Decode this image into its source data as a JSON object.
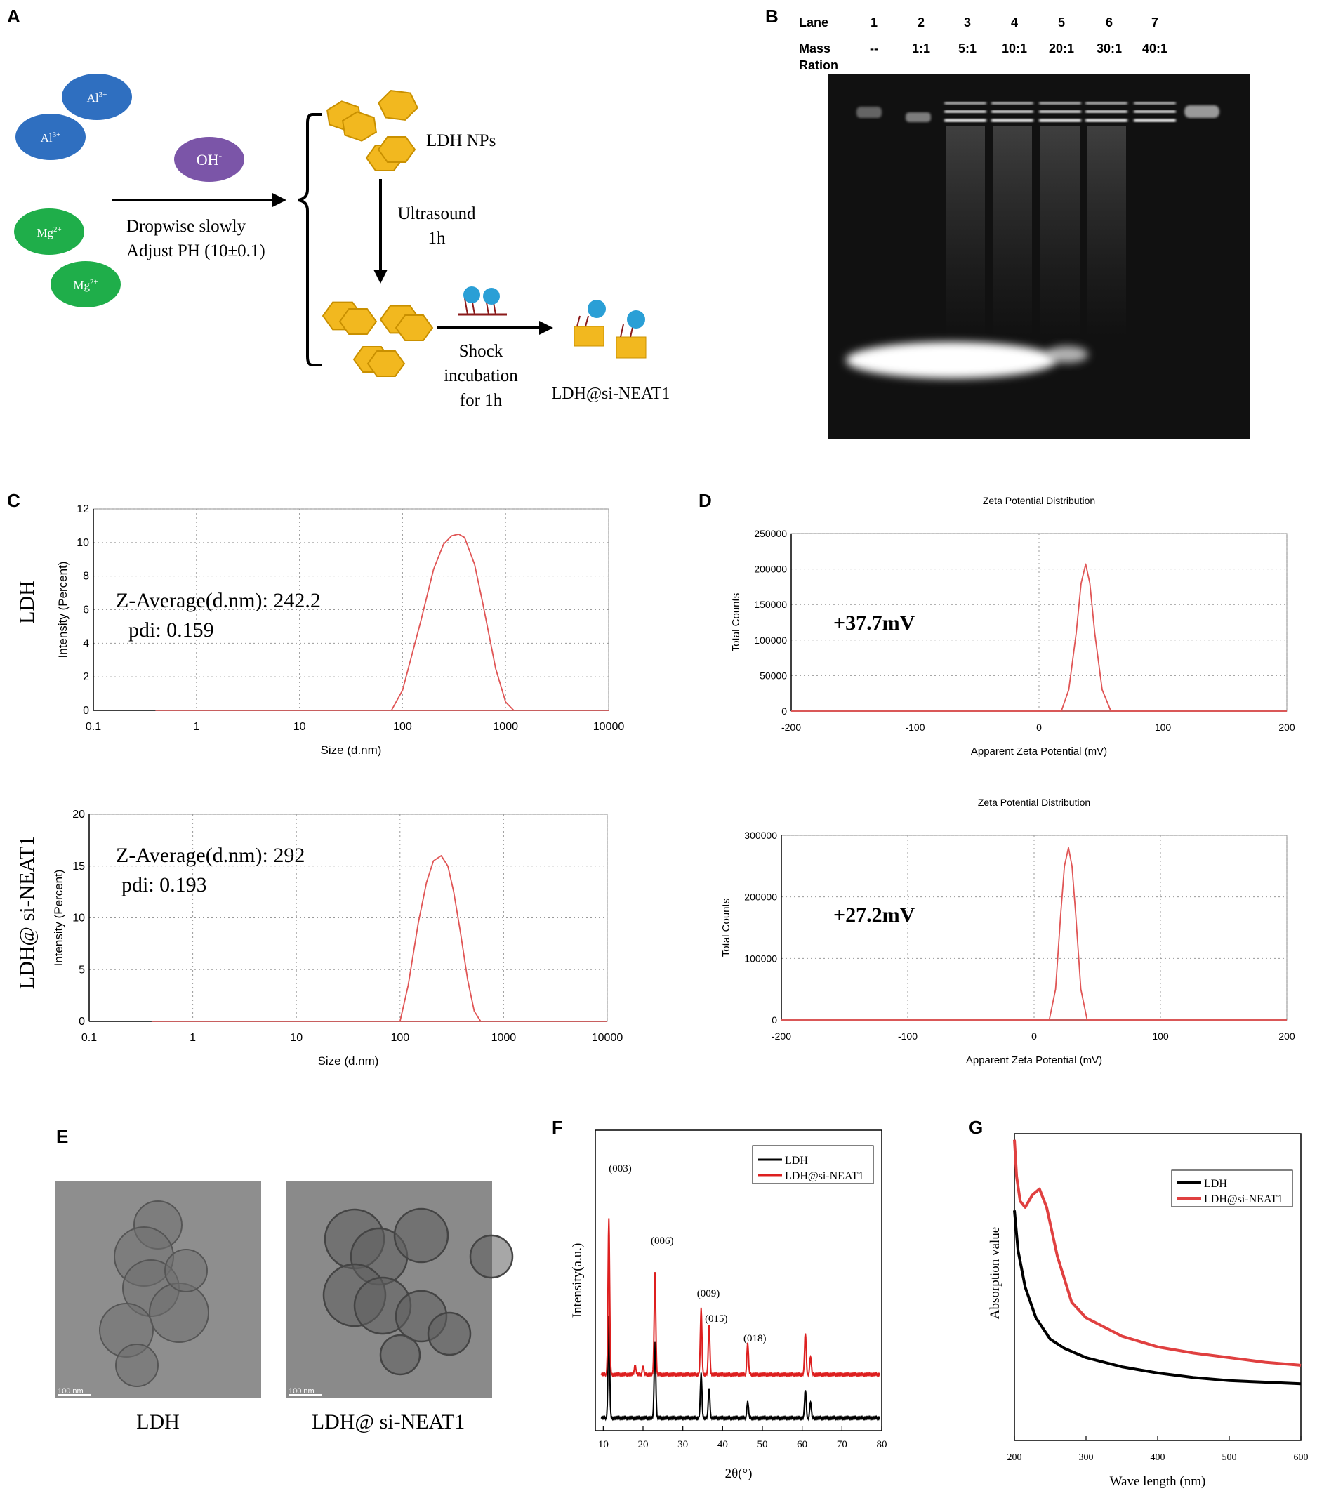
{
  "panel_letters": {
    "A": "A",
    "B": "B",
    "C": "C",
    "D": "D",
    "E": "E",
    "F": "F",
    "G": "G"
  },
  "panelA": {
    "ion_al": "Al",
    "ion_al_charge": "3+",
    "ion_mg": "Mg",
    "ion_mg_charge": "2+",
    "ion_oh": "OH",
    "ion_oh_charge": "-",
    "step1_line1": "Dropwise slowly",
    "step1_line2": "Adjust PH (10±0.1)",
    "ldh_nps": "LDH NPs",
    "ultrasound_line1": "Ultrasound",
    "ultrasound_line2": "1h",
    "shock_line1": "Shock",
    "shock_line2": "incubation",
    "shock_line3": "for 1h",
    "product": "LDH@si-NEAT1"
  },
  "panelB": {
    "lane_label": "Lane",
    "mass_label_line1": "Mass",
    "mass_label_line2": "Ration",
    "lanes": [
      "1",
      "2",
      "3",
      "4",
      "5",
      "6",
      "7"
    ],
    "ratios": [
      "--",
      "1:1",
      "5:1",
      "10:1",
      "20:1",
      "30:1",
      "40:1"
    ]
  },
  "panelC": {
    "side_label_top": "LDH",
    "side_label_bottom": "LDH@ si-NEAT1",
    "top_annot_line1": "Z-Average(d.nm): 242.2",
    "top_annot_line2": "pdi:  0.159",
    "bottom_annot_line1": "Z-Average(d.nm): 292",
    "bottom_annot_line2": "pdi:  0.193"
  },
  "panelD": {
    "top_annot": "+37.7mV",
    "bottom_annot": "+27.2mV"
  },
  "panelE": {
    "caption_left": "LDH",
    "caption_right": "LDH@ si-NEAT1",
    "scale_left": "100 nm",
    "scale_right": "100 nm"
  },
  "panelF": {
    "peaks": [
      "(003)",
      "(006)",
      "(009)",
      "(015)",
      "(018)"
    ]
  },
  "colors": {
    "curve_red": "#e05555",
    "xrd_red": "#dd1f1f",
    "uv_red": "#e04040",
    "al_blue": "#2f6fc0",
    "mg_green": "#1fae4a",
    "oh_purple": "#7b55a8",
    "ldh_gold": "#f2b81f"
  },
  "chart_data": [
    {
      "id": "C-top",
      "type": "line",
      "title": "",
      "xlabel": "Size (d.nm)",
      "ylabel": "Intensity (Percent)",
      "xscale": "log",
      "xlim": [
        0.1,
        10000
      ],
      "ylim": [
        0,
        12
      ],
      "xticks": [
        "0.1",
        "1",
        "10",
        "100",
        "1000",
        "10000"
      ],
      "yticks": [
        "0",
        "2",
        "4",
        "6",
        "8",
        "10",
        "12"
      ],
      "grid": true,
      "series": [
        {
          "x": [
            78,
            100,
            150,
            200,
            250,
            300,
            350,
            400,
            500,
            600,
            700,
            800,
            1000,
            1200
          ],
          "y": [
            0,
            1.2,
            5.3,
            8.4,
            9.9,
            10.4,
            10.5,
            10.3,
            8.7,
            6.4,
            4.3,
            2.5,
            0.5,
            0
          ]
        }
      ]
    },
    {
      "id": "C-bottom",
      "type": "line",
      "title": "",
      "xlabel": "Size (d.nm)",
      "ylabel": "Intensity (Percent)",
      "xscale": "log",
      "xlim": [
        0.1,
        10000
      ],
      "ylim": [
        0,
        20
      ],
      "xticks": [
        "0.1",
        "1",
        "10",
        "100",
        "1000",
        "10000"
      ],
      "yticks": [
        "0",
        "5",
        "10",
        "15",
        "20"
      ],
      "grid": true,
      "series": [
        {
          "x": [
            100,
            120,
            150,
            180,
            210,
            250,
            290,
            330,
            380,
            450,
            520,
            600
          ],
          "y": [
            0,
            3.5,
            9.5,
            13.4,
            15.5,
            16.0,
            15.0,
            12.5,
            8.8,
            4.0,
            1.0,
            0
          ]
        }
      ]
    },
    {
      "id": "D-top",
      "type": "line",
      "title": "Zeta Potential Distribution",
      "xlabel": "Apparent Zeta Potential (mV)",
      "ylabel": "Total Counts",
      "xlim": [
        -200,
        200
      ],
      "ylim": [
        0,
        250000
      ],
      "xticks": [
        "-200",
        "-100",
        "0",
        "100",
        "200"
      ],
      "yticks": [
        "0",
        "50000",
        "100000",
        "150000",
        "200000",
        "250000"
      ],
      "grid": true,
      "series": [
        {
          "x": [
            -200,
            18,
            24,
            30,
            34,
            37.7,
            41,
            45,
            51,
            58,
            200
          ],
          "y": [
            0,
            0,
            30000,
            110000,
            180000,
            207000,
            180000,
            110000,
            30000,
            0,
            0
          ]
        }
      ]
    },
    {
      "id": "D-bottom",
      "type": "line",
      "title": "Zeta Potential Distribution",
      "xlabel": "Apparent Zeta Potential (mV)",
      "ylabel": "Total Counts",
      "xlim": [
        -200,
        200
      ],
      "ylim": [
        0,
        300000
      ],
      "xticks": [
        "-200",
        "-100",
        "0",
        "100",
        "200"
      ],
      "yticks": [
        "0",
        "100000",
        "200000",
        "300000"
      ],
      "grid": true,
      "series": [
        {
          "x": [
            -200,
            12,
            17,
            21,
            24,
            27.2,
            30,
            33,
            37,
            42,
            200
          ],
          "y": [
            0,
            0,
            50000,
            170000,
            250000,
            280000,
            250000,
            170000,
            50000,
            0,
            0
          ]
        }
      ]
    },
    {
      "id": "F",
      "type": "line",
      "title": "",
      "xlabel": "2θ(°)",
      "ylabel": "Intensity(a.u.)",
      "xlim": [
        8,
        80
      ],
      "xticks": [
        "10",
        "20",
        "30",
        "40",
        "50",
        "60",
        "70",
        "80"
      ],
      "legend": "top-right",
      "series": [
        {
          "name": "LDH",
          "peaks": [
            [
              11.4,
              62
            ],
            [
              23.0,
              46
            ],
            [
              34.6,
              27
            ],
            [
              36.6,
              18
            ],
            [
              46.3,
              10
            ],
            [
              60.8,
              17
            ],
            [
              62.1,
              10
            ]
          ]
        },
        {
          "name": "LDH@si-NEAT1",
          "peaks": [
            [
              11.4,
              95
            ],
            [
              18.0,
              6
            ],
            [
              20.0,
              5
            ],
            [
              23.0,
              62
            ],
            [
              34.6,
              40
            ],
            [
              36.6,
              30
            ],
            [
              46.3,
              19
            ],
            [
              60.8,
              25
            ],
            [
              62.1,
              11
            ]
          ]
        }
      ]
    },
    {
      "id": "G",
      "type": "line",
      "title": "",
      "xlabel": "Wave length (nm)",
      "ylabel": "Absorption value",
      "xlim": [
        200,
        600
      ],
      "xticks": [
        "200",
        "300",
        "400",
        "500",
        "600"
      ],
      "legend": "top-right",
      "series": [
        {
          "name": "LDH",
          "x": [
            200,
            205,
            215,
            230,
            250,
            270,
            300,
            350,
            400,
            450,
            500,
            550,
            600
          ],
          "y": [
            0.75,
            0.62,
            0.5,
            0.4,
            0.33,
            0.3,
            0.27,
            0.24,
            0.22,
            0.205,
            0.195,
            0.19,
            0.185
          ]
        },
        {
          "name": "LDH@si-NEAT1",
          "x": [
            200,
            203,
            208,
            215,
            225,
            235,
            245,
            260,
            280,
            300,
            350,
            400,
            450,
            500,
            550,
            600
          ],
          "y": [
            0.98,
            0.86,
            0.78,
            0.76,
            0.8,
            0.82,
            0.76,
            0.6,
            0.45,
            0.4,
            0.34,
            0.305,
            0.285,
            0.27,
            0.255,
            0.245
          ]
        }
      ]
    }
  ]
}
